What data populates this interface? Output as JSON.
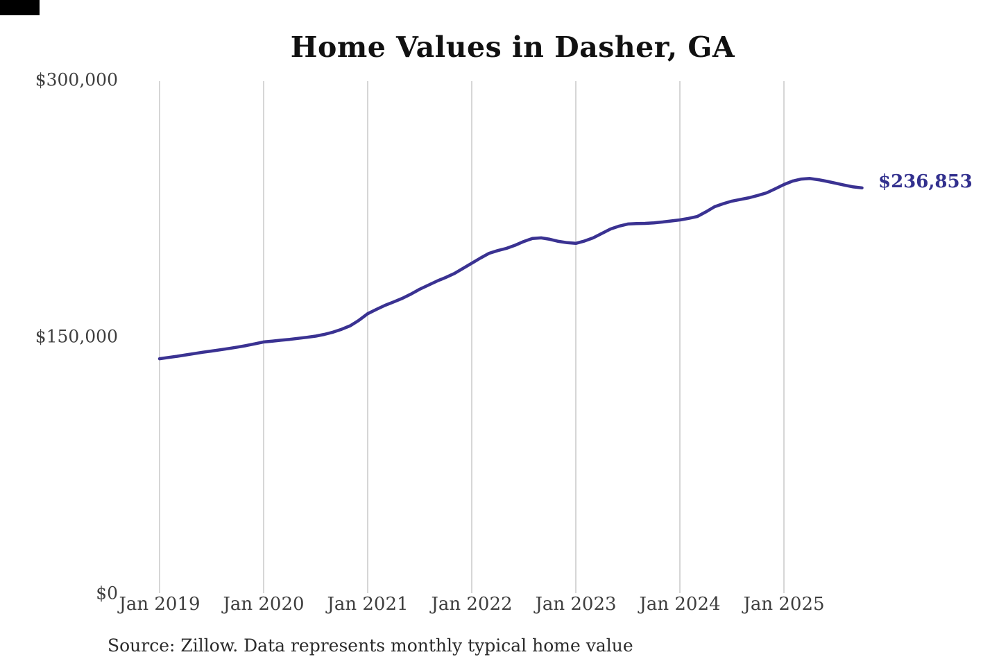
{
  "decor": {
    "corner_patch_color": "#000000"
  },
  "chart": {
    "title": "Home Values in Dasher, GA",
    "end_label": "$236,853",
    "source": "Source: Zillow. Data represents monthly typical home value",
    "colors": {
      "line": "#3a3292",
      "end_label": "#32308e",
      "grid": "#c9c9c9",
      "axis_text": "#3e3e3e",
      "title": "#111111",
      "source_text": "#2b2b2b",
      "background": "#ffffff"
    }
  },
  "chart_data": {
    "type": "line",
    "title": "Home Values in Dasher, GA",
    "series_name": "Monthly typical home value",
    "ylim": [
      0,
      300000
    ],
    "y_ticks": [
      "$0",
      "$150,000",
      "$300,000"
    ],
    "x_ticks": [
      "Jan 2019",
      "Jan 2020",
      "Jan 2021",
      "Jan 2022",
      "Jan 2023",
      "Jan 2024",
      "Jan 2025"
    ],
    "grid": "vertical-only",
    "legend": "none",
    "annotation": {
      "text": "$236,853",
      "position": "right-of-last-point"
    },
    "x": [
      "Jan 2019",
      "Feb 2019",
      "Mar 2019",
      "Apr 2019",
      "May 2019",
      "Jun 2019",
      "Jul 2019",
      "Aug 2019",
      "Sep 2019",
      "Oct 2019",
      "Nov 2019",
      "Dec 2019",
      "Jan 2020",
      "Feb 2020",
      "Mar 2020",
      "Apr 2020",
      "May 2020",
      "Jun 2020",
      "Jul 2020",
      "Aug 2020",
      "Sep 2020",
      "Oct 2020",
      "Nov 2020",
      "Dec 2020",
      "Jan 2021",
      "Feb 2021",
      "Mar 2021",
      "Apr 2021",
      "May 2021",
      "Jun 2021",
      "Jul 2021",
      "Aug 2021",
      "Sep 2021",
      "Oct 2021",
      "Nov 2021",
      "Dec 2021",
      "Jan 2022",
      "Feb 2022",
      "Mar 2022",
      "Apr 2022",
      "May 2022",
      "Jun 2022",
      "Jul 2022",
      "Aug 2022",
      "Sep 2022",
      "Oct 2022",
      "Nov 2022",
      "Dec 2022",
      "Jan 2023",
      "Feb 2023",
      "Mar 2023",
      "Apr 2023",
      "May 2023",
      "Jun 2023",
      "Jul 2023",
      "Aug 2023",
      "Sep 2023",
      "Oct 2023",
      "Nov 2023",
      "Dec 2023",
      "Jan 2024",
      "Feb 2024",
      "Mar 2024",
      "Apr 2024",
      "May 2024",
      "Jun 2024",
      "Jul 2024",
      "Aug 2024",
      "Sep 2024",
      "Oct 2024",
      "Nov 2024",
      "Dec 2024",
      "Jan 2025",
      "Feb 2025",
      "Mar 2025",
      "Apr 2025",
      "May 2025",
      "Jun 2025",
      "Jul 2025",
      "Aug 2025",
      "Sep 2025",
      "Oct 2025"
    ],
    "values": [
      137000,
      137700,
      138400,
      139200,
      140000,
      140800,
      141500,
      142200,
      143000,
      143800,
      144700,
      145700,
      146800,
      147300,
      147800,
      148300,
      148900,
      149500,
      150200,
      151200,
      152500,
      154200,
      156300,
      159500,
      163300,
      165800,
      168200,
      170200,
      172300,
      174800,
      177600,
      180000,
      182400,
      184500,
      186800,
      189800,
      192800,
      195800,
      198600,
      200200,
      201500,
      203300,
      205500,
      207300,
      207600,
      206800,
      205600,
      204800,
      204400,
      205800,
      207600,
      210200,
      212800,
      214500,
      215700,
      216000,
      216100,
      216400,
      216900,
      217500,
      218100,
      219000,
      220100,
      222800,
      225800,
      227600,
      229100,
      230100,
      231100,
      232400,
      233900,
      236300,
      238800,
      240800,
      242000,
      242300,
      241600,
      240600,
      239500,
      238400,
      237400,
      236853
    ]
  }
}
